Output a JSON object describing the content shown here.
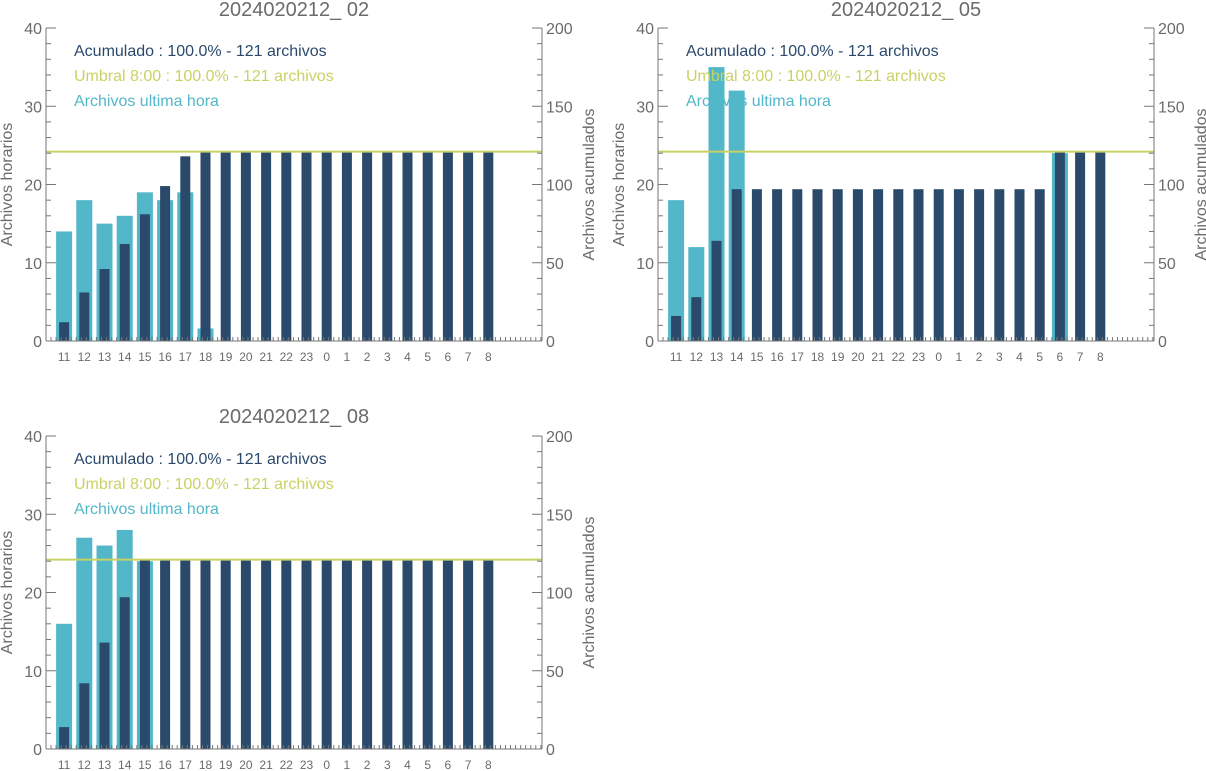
{
  "colors": {
    "hourly": "#52b7c8",
    "cumulative": "#2b4a6b",
    "threshold": "#c8d264",
    "axis": "#777777",
    "text": "#6b6b6b"
  },
  "chart_data": [
    {
      "type": "bar",
      "title": "2024020212_ 02",
      "ylabel": "Archivos horarios",
      "y2label": "Archivos acumulados",
      "ylim": [
        0,
        40
      ],
      "y2lim": [
        0,
        200
      ],
      "yticks": [
        "0",
        "10",
        "20",
        "30",
        "40"
      ],
      "y2ticks": [
        "0",
        "50",
        "100",
        "150",
        "200"
      ],
      "categories": [
        "11",
        "12",
        "13",
        "14",
        "15",
        "16",
        "17",
        "18",
        "19",
        "20",
        "21",
        "22",
        "23",
        "0",
        "1",
        "2",
        "3",
        "4",
        "5",
        "6",
        "7",
        "8"
      ],
      "legend": [
        {
          "text": "Acumulado : 100.0% - 121 archivos",
          "color": "#2b4a6b"
        },
        {
          "text": "Umbral 8:00 : 100.0% - 121 archivos",
          "color": "#c8d264"
        },
        {
          "text": "Archivos ultima hora",
          "color": "#52b7c8"
        }
      ],
      "threshold": 121,
      "series": [
        {
          "name": "Archivos ultima hora",
          "axis": "left",
          "values": [
            14,
            18,
            15,
            16,
            19,
            18,
            19,
            1.6,
            0,
            0,
            0,
            0,
            0,
            0,
            0,
            0,
            0,
            0,
            0,
            0,
            0,
            0
          ]
        },
        {
          "name": "Acumulado",
          "axis": "right",
          "values": [
            12,
            31,
            46,
            62,
            81,
            99,
            118,
            121,
            121,
            121,
            121,
            121,
            121,
            121,
            121,
            121,
            121,
            121,
            121,
            121,
            121,
            121
          ]
        }
      ]
    },
    {
      "type": "bar",
      "title": "2024020212_ 05",
      "ylabel": "Archivos horarios",
      "y2label": "Archivos acumulados",
      "ylim": [
        0,
        40
      ],
      "y2lim": [
        0,
        200
      ],
      "yticks": [
        "0",
        "10",
        "20",
        "30",
        "40"
      ],
      "y2ticks": [
        "0",
        "50",
        "100",
        "150",
        "200"
      ],
      "categories": [
        "11",
        "12",
        "13",
        "14",
        "15",
        "16",
        "17",
        "18",
        "19",
        "20",
        "21",
        "22",
        "23",
        "0",
        "1",
        "2",
        "3",
        "4",
        "5",
        "6",
        "7",
        "8"
      ],
      "legend": [
        {
          "text": "Acumulado : 100.0% - 121 archivos",
          "color": "#2b4a6b"
        },
        {
          "text": "Umbral 8:00 : 100.0% - 121 archivos",
          "color": "#c8d264"
        },
        {
          "text": "Archivos ultima hora",
          "color": "#52b7c8"
        }
      ],
      "threshold": 121,
      "series": [
        {
          "name": "Archivos ultima hora",
          "axis": "left",
          "values": [
            18,
            12,
            35,
            32,
            0,
            0,
            0,
            0,
            0,
            0,
            0,
            0,
            0,
            0,
            0,
            0,
            0,
            0,
            0,
            24,
            0,
            0
          ]
        },
        {
          "name": "Acumulado",
          "axis": "right",
          "values": [
            16,
            28,
            64,
            97,
            97,
            97,
            97,
            97,
            97,
            97,
            97,
            97,
            97,
            97,
            97,
            97,
            97,
            97,
            97,
            121,
            121,
            121
          ]
        }
      ]
    },
    {
      "type": "bar",
      "title": "2024020212_ 08",
      "ylabel": "Archivos horarios",
      "y2label": "Archivos acumulados",
      "ylim": [
        0,
        40
      ],
      "y2lim": [
        0,
        200
      ],
      "yticks": [
        "0",
        "10",
        "20",
        "30",
        "40"
      ],
      "y2ticks": [
        "0",
        "50",
        "100",
        "150",
        "200"
      ],
      "categories": [
        "11",
        "12",
        "13",
        "14",
        "15",
        "16",
        "17",
        "18",
        "19",
        "20",
        "21",
        "22",
        "23",
        "0",
        "1",
        "2",
        "3",
        "4",
        "5",
        "6",
        "7",
        "8"
      ],
      "legend": [
        {
          "text": "Acumulado : 100.0% - 121 archivos",
          "color": "#2b4a6b"
        },
        {
          "text": "Umbral 8:00 : 100.0% - 121 archivos",
          "color": "#c8d264"
        },
        {
          "text": "Archivos ultima hora",
          "color": "#52b7c8"
        }
      ],
      "threshold": 121,
      "series": [
        {
          "name": "Archivos ultima hora",
          "axis": "left",
          "values": [
            16,
            27,
            26,
            28,
            24,
            0,
            0,
            0,
            0,
            0,
            0,
            0,
            0,
            0,
            0,
            0,
            0,
            0,
            0,
            0,
            0,
            0
          ]
        },
        {
          "name": "Acumulado",
          "axis": "right",
          "values": [
            14,
            42,
            68,
            97,
            121,
            121,
            121,
            121,
            121,
            121,
            121,
            121,
            121,
            121,
            121,
            121,
            121,
            121,
            121,
            121,
            121,
            121
          ]
        }
      ]
    }
  ]
}
